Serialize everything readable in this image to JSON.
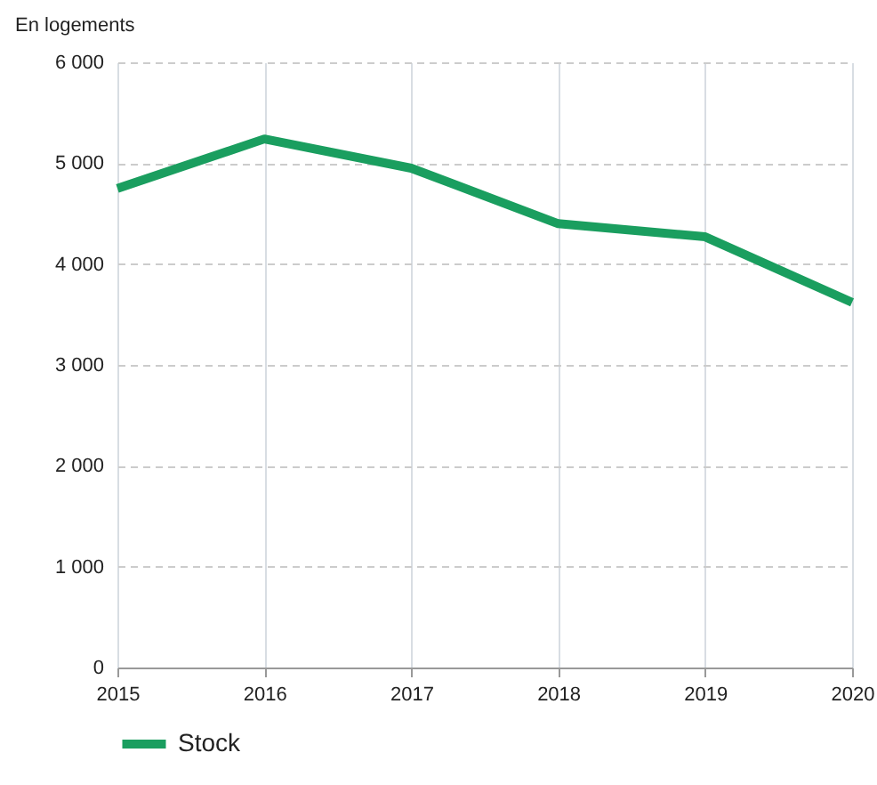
{
  "chart_data": {
    "type": "line",
    "ylabel": "En logements",
    "x": [
      2015,
      2016,
      2017,
      2018,
      2019,
      2020
    ],
    "series": [
      {
        "name": "Stock",
        "color": "#1a9e5f",
        "values": [
          4750,
          5240,
          4950,
          4400,
          4270,
          3620
        ]
      }
    ],
    "xlim": [
      2015,
      2020
    ],
    "xticks": [
      2015,
      2016,
      2017,
      2018,
      2019,
      2020
    ],
    "ylim": [
      0,
      6000
    ],
    "yticks": [
      0,
      {
        "value": 1000,
        "label": "1 000"
      },
      {
        "value": 2000,
        "label": "2 000"
      },
      {
        "value": 3000,
        "label": "3 000"
      },
      {
        "value": 4000,
        "label": "4 000"
      },
      {
        "value": 5000,
        "label": "5 000"
      },
      {
        "value": 6000,
        "label": "6 000"
      }
    ],
    "grid": true,
    "legend": "bottom",
    "marker": "none",
    "line_style": "solid"
  }
}
